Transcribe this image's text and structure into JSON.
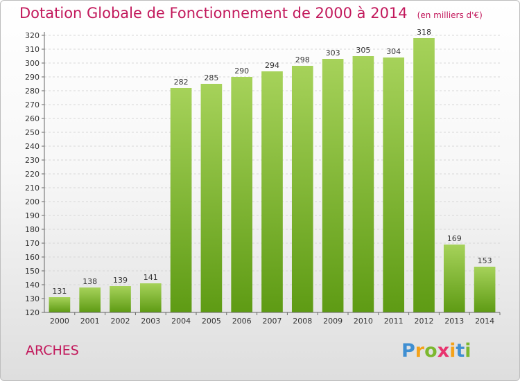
{
  "header": {
    "title": "Dotation Globale de Fonctionnement de 2000 à 2014",
    "unit": "(en milliers d'€)"
  },
  "footer": {
    "place": "ARCHES",
    "logo_letters": [
      {
        "ch": "P",
        "color": "#3f8fd2"
      },
      {
        "ch": "r",
        "color": "#f4a21a"
      },
      {
        "ch": "o",
        "color": "#7cb82f"
      },
      {
        "ch": "x",
        "color": "#e8336e"
      },
      {
        "ch": "i",
        "color": "#f4a21a"
      },
      {
        "ch": "t",
        "color": "#3f8fd2"
      },
      {
        "ch": "i",
        "color": "#7cb82f"
      }
    ]
  },
  "chart_data": {
    "type": "bar",
    "title": "Dotation Globale de Fonctionnement de 2000 à 2014",
    "subtitle": "(en milliers d'€)",
    "xlabel": "",
    "ylabel": "",
    "categories": [
      "2000",
      "2001",
      "2002",
      "2003",
      "2004",
      "2005",
      "2006",
      "2007",
      "2008",
      "2009",
      "2010",
      "2011",
      "2012",
      "2013",
      "2014"
    ],
    "values": [
      131,
      138,
      139,
      141,
      282,
      285,
      290,
      294,
      298,
      303,
      305,
      304,
      318,
      169,
      153
    ],
    "ylim": [
      120,
      320
    ],
    "ytick_step": 10,
    "grid": true,
    "legend": "none",
    "colors": {
      "bar_top": "#a6d25a",
      "bar_bottom": "#5e9b14",
      "grid": "#d7d7d7",
      "axis": "#666666"
    }
  }
}
